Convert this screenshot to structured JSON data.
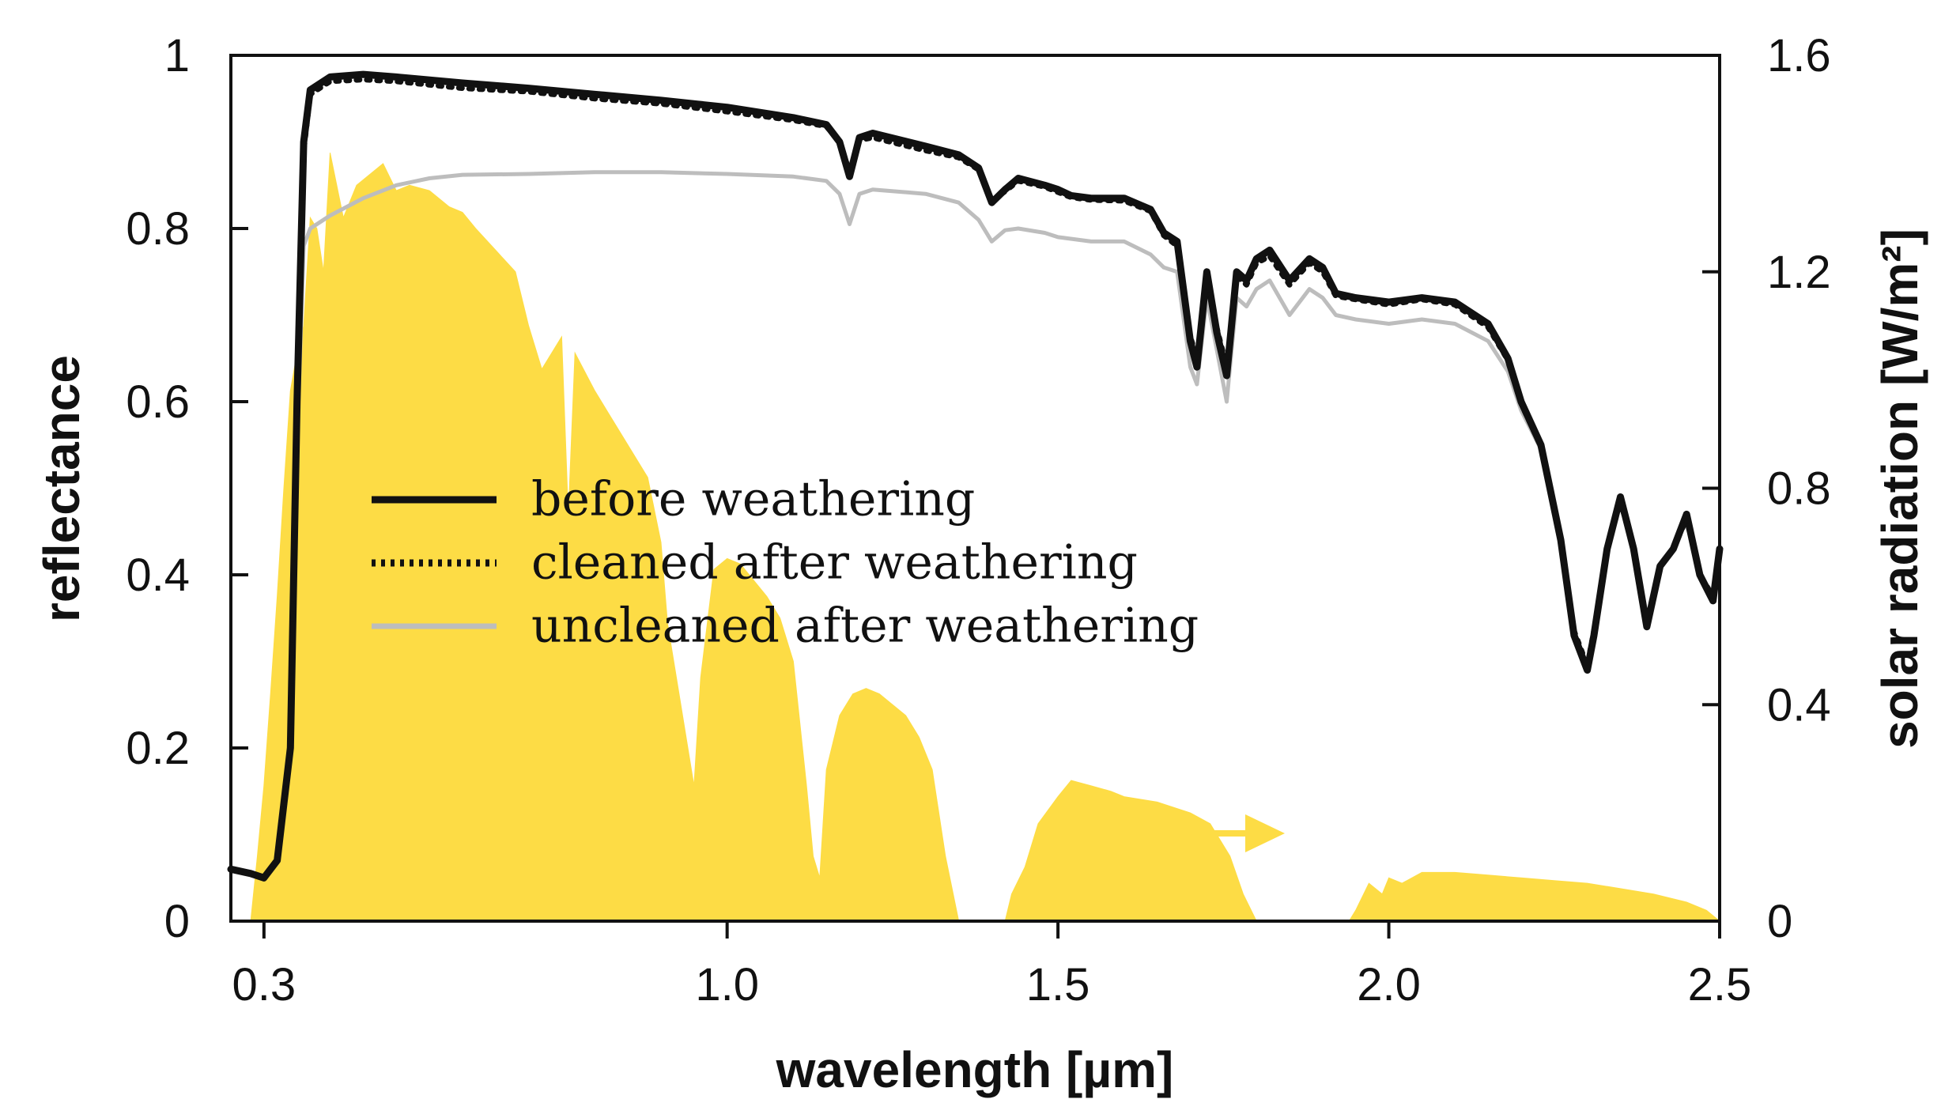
{
  "chart_data": {
    "type": "line",
    "title": "",
    "xlabel": "wavelength [µm]",
    "ylabel": "reflectance",
    "y2label": "solar radiation [W/m²]",
    "xlim": [
      0.25,
      2.5
    ],
    "ylim": [
      0,
      1
    ],
    "y2lim": [
      0,
      1.6
    ],
    "xticks": [
      0.3,
      1.0,
      1.5,
      2.0,
      2.5
    ],
    "xtick_labels": [
      "0.3",
      "1.0",
      "1.5",
      "2.0",
      "2.5"
    ],
    "yticks": [
      0,
      0.2,
      0.4,
      0.6,
      0.8,
      1
    ],
    "ytick_labels": [
      "0",
      "0.2",
      "0.4",
      "0.6",
      "0.8",
      "1"
    ],
    "y2ticks": [
      0,
      0.4,
      0.8,
      1.2,
      1.6
    ],
    "y2tick_labels": [
      "0",
      "0.4",
      "0.8",
      "1.2",
      "1.6"
    ],
    "grid": false,
    "legend_position": "center-left",
    "colors": {
      "before": "#111111",
      "cleaned": "#111111",
      "uncleaned": "#bdbdbd",
      "solar": "#fddc45"
    },
    "series": [
      {
        "name": "before weathering",
        "axis": "left",
        "style": "solid",
        "points": [
          [
            0.25,
            0.06
          ],
          [
            0.28,
            0.055
          ],
          [
            0.3,
            0.05
          ],
          [
            0.32,
            0.07
          ],
          [
            0.34,
            0.2
          ],
          [
            0.35,
            0.6
          ],
          [
            0.36,
            0.9
          ],
          [
            0.37,
            0.96
          ],
          [
            0.4,
            0.975
          ],
          [
            0.45,
            0.978
          ],
          [
            0.5,
            0.975
          ],
          [
            0.6,
            0.968
          ],
          [
            0.7,
            0.962
          ],
          [
            0.8,
            0.955
          ],
          [
            0.9,
            0.948
          ],
          [
            1.0,
            0.94
          ],
          [
            1.1,
            0.928
          ],
          [
            1.15,
            0.92
          ],
          [
            1.17,
            0.9
          ],
          [
            1.185,
            0.86
          ],
          [
            1.2,
            0.905
          ],
          [
            1.22,
            0.91
          ],
          [
            1.3,
            0.895
          ],
          [
            1.35,
            0.885
          ],
          [
            1.38,
            0.87
          ],
          [
            1.4,
            0.83
          ],
          [
            1.42,
            0.845
          ],
          [
            1.44,
            0.858
          ],
          [
            1.48,
            0.85
          ],
          [
            1.5,
            0.845
          ],
          [
            1.52,
            0.838
          ],
          [
            1.55,
            0.835
          ],
          [
            1.6,
            0.835
          ],
          [
            1.64,
            0.822
          ],
          [
            1.66,
            0.795
          ],
          [
            1.68,
            0.785
          ],
          [
            1.7,
            0.67
          ],
          [
            1.71,
            0.64
          ],
          [
            1.725,
            0.75
          ],
          [
            1.74,
            0.68
          ],
          [
            1.755,
            0.63
          ],
          [
            1.77,
            0.75
          ],
          [
            1.785,
            0.74
          ],
          [
            1.8,
            0.765
          ],
          [
            1.82,
            0.775
          ],
          [
            1.85,
            0.74
          ],
          [
            1.88,
            0.765
          ],
          [
            1.9,
            0.755
          ],
          [
            1.92,
            0.725
          ],
          [
            1.95,
            0.72
          ],
          [
            2.0,
            0.715
          ],
          [
            2.05,
            0.72
          ],
          [
            2.1,
            0.715
          ],
          [
            2.15,
            0.69
          ],
          [
            2.18,
            0.65
          ],
          [
            2.2,
            0.6
          ],
          [
            2.23,
            0.55
          ],
          [
            2.26,
            0.44
          ],
          [
            2.28,
            0.33
          ],
          [
            2.3,
            0.29
          ],
          [
            2.31,
            0.33
          ],
          [
            2.33,
            0.43
          ],
          [
            2.35,
            0.49
          ],
          [
            2.37,
            0.43
          ],
          [
            2.39,
            0.34
          ],
          [
            2.41,
            0.41
          ],
          [
            2.43,
            0.43
          ],
          [
            2.45,
            0.47
          ],
          [
            2.47,
            0.4
          ],
          [
            2.49,
            0.37
          ],
          [
            2.5,
            0.43
          ]
        ]
      },
      {
        "name": "cleaned after weathering",
        "axis": "left",
        "style": "dotted",
        "points": [
          [
            0.25,
            0.06
          ],
          [
            0.28,
            0.055
          ],
          [
            0.3,
            0.05
          ],
          [
            0.32,
            0.07
          ],
          [
            0.34,
            0.2
          ],
          [
            0.35,
            0.58
          ],
          [
            0.36,
            0.89
          ],
          [
            0.37,
            0.955
          ],
          [
            0.4,
            0.97
          ],
          [
            0.45,
            0.972
          ],
          [
            0.5,
            0.97
          ],
          [
            0.6,
            0.962
          ],
          [
            0.7,
            0.958
          ],
          [
            0.8,
            0.95
          ],
          [
            0.9,
            0.944
          ],
          [
            1.0,
            0.935
          ],
          [
            1.1,
            0.925
          ],
          [
            1.15,
            0.918
          ],
          [
            1.17,
            0.9
          ],
          [
            1.185,
            0.865
          ],
          [
            1.2,
            0.902
          ],
          [
            1.22,
            0.905
          ],
          [
            1.3,
            0.89
          ],
          [
            1.35,
            0.882
          ],
          [
            1.38,
            0.868
          ],
          [
            1.4,
            0.832
          ],
          [
            1.42,
            0.843
          ],
          [
            1.44,
            0.855
          ],
          [
            1.48,
            0.848
          ],
          [
            1.5,
            0.842
          ],
          [
            1.52,
            0.836
          ],
          [
            1.55,
            0.833
          ],
          [
            1.6,
            0.832
          ],
          [
            1.64,
            0.82
          ],
          [
            1.66,
            0.792
          ],
          [
            1.68,
            0.78
          ],
          [
            1.7,
            0.675
          ],
          [
            1.71,
            0.65
          ],
          [
            1.725,
            0.745
          ],
          [
            1.74,
            0.685
          ],
          [
            1.755,
            0.64
          ],
          [
            1.77,
            0.745
          ],
          [
            1.785,
            0.735
          ],
          [
            1.8,
            0.76
          ],
          [
            1.82,
            0.768
          ],
          [
            1.85,
            0.735
          ],
          [
            1.88,
            0.76
          ],
          [
            1.9,
            0.75
          ],
          [
            1.92,
            0.722
          ],
          [
            1.95,
            0.718
          ],
          [
            2.0,
            0.712
          ],
          [
            2.05,
            0.718
          ],
          [
            2.1,
            0.712
          ],
          [
            2.15,
            0.686
          ],
          [
            2.18,
            0.648
          ],
          [
            2.2,
            0.598
          ],
          [
            2.23,
            0.548
          ],
          [
            2.26,
            0.44
          ],
          [
            2.28,
            0.335
          ],
          [
            2.3,
            0.295
          ],
          [
            2.31,
            0.335
          ],
          [
            2.33,
            0.43
          ],
          [
            2.35,
            0.485
          ],
          [
            2.37,
            0.43
          ],
          [
            2.39,
            0.345
          ],
          [
            2.41,
            0.41
          ],
          [
            2.43,
            0.43
          ],
          [
            2.45,
            0.465
          ],
          [
            2.47,
            0.4
          ],
          [
            2.49,
            0.375
          ],
          [
            2.5,
            0.43
          ]
        ]
      },
      {
        "name": "uncleaned after weathering",
        "axis": "left",
        "style": "solid",
        "points": [
          [
            0.25,
            0.06
          ],
          [
            0.28,
            0.055
          ],
          [
            0.3,
            0.05
          ],
          [
            0.32,
            0.07
          ],
          [
            0.34,
            0.2
          ],
          [
            0.35,
            0.55
          ],
          [
            0.36,
            0.78
          ],
          [
            0.37,
            0.8
          ],
          [
            0.4,
            0.815
          ],
          [
            0.45,
            0.835
          ],
          [
            0.5,
            0.85
          ],
          [
            0.55,
            0.858
          ],
          [
            0.6,
            0.862
          ],
          [
            0.7,
            0.863
          ],
          [
            0.8,
            0.865
          ],
          [
            0.9,
            0.865
          ],
          [
            1.0,
            0.863
          ],
          [
            1.1,
            0.86
          ],
          [
            1.15,
            0.855
          ],
          [
            1.17,
            0.84
          ],
          [
            1.185,
            0.805
          ],
          [
            1.2,
            0.84
          ],
          [
            1.22,
            0.845
          ],
          [
            1.3,
            0.84
          ],
          [
            1.35,
            0.83
          ],
          [
            1.38,
            0.81
          ],
          [
            1.4,
            0.785
          ],
          [
            1.42,
            0.798
          ],
          [
            1.44,
            0.8
          ],
          [
            1.48,
            0.795
          ],
          [
            1.5,
            0.79
          ],
          [
            1.55,
            0.785
          ],
          [
            1.6,
            0.785
          ],
          [
            1.64,
            0.77
          ],
          [
            1.66,
            0.755
          ],
          [
            1.68,
            0.75
          ],
          [
            1.7,
            0.64
          ],
          [
            1.71,
            0.62
          ],
          [
            1.725,
            0.72
          ],
          [
            1.74,
            0.66
          ],
          [
            1.755,
            0.6
          ],
          [
            1.77,
            0.72
          ],
          [
            1.785,
            0.71
          ],
          [
            1.8,
            0.73
          ],
          [
            1.82,
            0.74
          ],
          [
            1.85,
            0.7
          ],
          [
            1.88,
            0.73
          ],
          [
            1.9,
            0.72
          ],
          [
            1.92,
            0.7
          ],
          [
            1.95,
            0.695
          ],
          [
            2.0,
            0.69
          ],
          [
            2.05,
            0.695
          ],
          [
            2.1,
            0.69
          ],
          [
            2.15,
            0.67
          ],
          [
            2.18,
            0.635
          ],
          [
            2.2,
            0.59
          ],
          [
            2.23,
            0.545
          ],
          [
            2.26,
            0.44
          ],
          [
            2.28,
            0.33
          ],
          [
            2.3,
            0.29
          ],
          [
            2.31,
            0.33
          ],
          [
            2.33,
            0.43
          ],
          [
            2.35,
            0.485
          ],
          [
            2.37,
            0.43
          ],
          [
            2.39,
            0.34
          ],
          [
            2.41,
            0.41
          ],
          [
            2.43,
            0.43
          ],
          [
            2.45,
            0.465
          ],
          [
            2.47,
            0.4
          ],
          [
            2.49,
            0.37
          ],
          [
            2.5,
            0.43
          ]
        ]
      },
      {
        "name": "solar radiation",
        "axis": "right",
        "style": "area",
        "points": [
          [
            0.28,
            0.0
          ],
          [
            0.29,
            0.12
          ],
          [
            0.3,
            0.25
          ],
          [
            0.31,
            0.42
          ],
          [
            0.32,
            0.6
          ],
          [
            0.33,
            0.8
          ],
          [
            0.34,
            0.98
          ],
          [
            0.35,
            1.05
          ],
          [
            0.36,
            1.1
          ],
          [
            0.37,
            1.3
          ],
          [
            0.38,
            1.28
          ],
          [
            0.39,
            1.2
          ],
          [
            0.4,
            1.42
          ],
          [
            0.42,
            1.3
          ],
          [
            0.44,
            1.36
          ],
          [
            0.46,
            1.38
          ],
          [
            0.48,
            1.4
          ],
          [
            0.5,
            1.35
          ],
          [
            0.52,
            1.36
          ],
          [
            0.55,
            1.35
          ],
          [
            0.58,
            1.32
          ],
          [
            0.6,
            1.31
          ],
          [
            0.62,
            1.28
          ],
          [
            0.65,
            1.24
          ],
          [
            0.68,
            1.2
          ],
          [
            0.7,
            1.1
          ],
          [
            0.72,
            1.02
          ],
          [
            0.75,
            1.08
          ],
          [
            0.76,
            0.75
          ],
          [
            0.77,
            1.05
          ],
          [
            0.8,
            0.98
          ],
          [
            0.82,
            0.94
          ],
          [
            0.85,
            0.88
          ],
          [
            0.88,
            0.82
          ],
          [
            0.9,
            0.7
          ],
          [
            0.91,
            0.55
          ],
          [
            0.93,
            0.4
          ],
          [
            0.95,
            0.25
          ],
          [
            0.96,
            0.45
          ],
          [
            0.98,
            0.65
          ],
          [
            1.0,
            0.67
          ],
          [
            1.02,
            0.66
          ],
          [
            1.04,
            0.63
          ],
          [
            1.06,
            0.6
          ],
          [
            1.08,
            0.56
          ],
          [
            1.1,
            0.48
          ],
          [
            1.12,
            0.25
          ],
          [
            1.13,
            0.12
          ],
          [
            1.14,
            0.08
          ],
          [
            1.15,
            0.28
          ],
          [
            1.17,
            0.38
          ],
          [
            1.19,
            0.42
          ],
          [
            1.21,
            0.43
          ],
          [
            1.23,
            0.42
          ],
          [
            1.25,
            0.4
          ],
          [
            1.27,
            0.38
          ],
          [
            1.29,
            0.34
          ],
          [
            1.31,
            0.28
          ],
          [
            1.33,
            0.12
          ],
          [
            1.35,
            0.0
          ],
          [
            1.42,
            0.0
          ],
          [
            1.43,
            0.05
          ],
          [
            1.45,
            0.1
          ],
          [
            1.47,
            0.18
          ],
          [
            1.5,
            0.23
          ],
          [
            1.52,
            0.26
          ],
          [
            1.55,
            0.25
          ],
          [
            1.58,
            0.24
          ],
          [
            1.6,
            0.23
          ],
          [
            1.65,
            0.22
          ],
          [
            1.7,
            0.2
          ],
          [
            1.73,
            0.18
          ],
          [
            1.76,
            0.12
          ],
          [
            1.78,
            0.05
          ],
          [
            1.8,
            0.0
          ],
          [
            1.94,
            0.0
          ],
          [
            1.95,
            0.02
          ],
          [
            1.97,
            0.07
          ],
          [
            1.99,
            0.05
          ],
          [
            2.0,
            0.08
          ],
          [
            2.02,
            0.07
          ],
          [
            2.05,
            0.09
          ],
          [
            2.1,
            0.09
          ],
          [
            2.15,
            0.085
          ],
          [
            2.2,
            0.08
          ],
          [
            2.25,
            0.075
          ],
          [
            2.3,
            0.07
          ],
          [
            2.35,
            0.06
          ],
          [
            2.4,
            0.05
          ],
          [
            2.45,
            0.035
          ],
          [
            2.48,
            0.02
          ],
          [
            2.5,
            0.0
          ]
        ]
      }
    ]
  }
}
